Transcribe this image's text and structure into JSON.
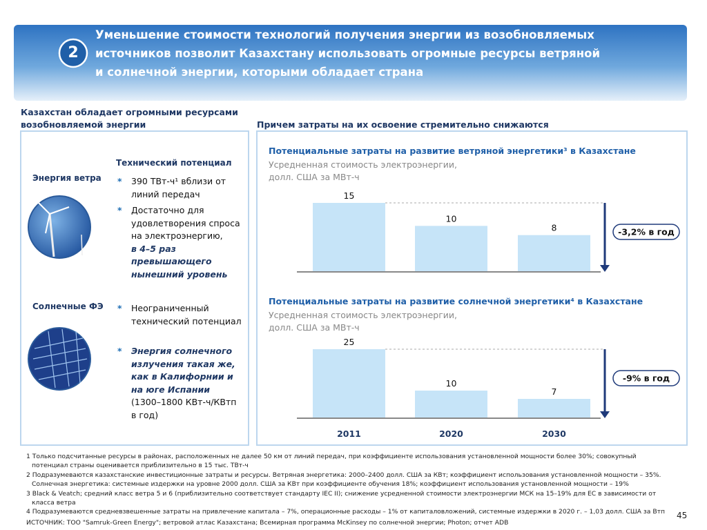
{
  "header": {
    "number": "2",
    "title_lines": [
      "Уменьшение стоимости технологий получения энергии из возобновляемых",
      "источников позволит Казахстану использовать огромные ресурсы ветряной",
      "и солнечной энергии, которыми обладает страна"
    ]
  },
  "left": {
    "heading": "Казахстан обладает огромными ресурсами возобновляемой энергии",
    "column_heading": "Технический потенциал",
    "sections": [
      {
        "label": "Энергия ветра",
        "bullets": [
          {
            "parts": [
              {
                "text": "390 ТВт-ч¹ вблизи от линий передач",
                "emphasis": false
              }
            ]
          },
          {
            "parts": [
              {
                "text": "Достаточно для удовлетворения спроса на электроэнергию,",
                "emphasis": false
              },
              {
                "text": "в 4–5 раз превышающего нынешний уровень",
                "emphasis": true
              }
            ]
          }
        ]
      },
      {
        "label": "Солнечные ФЭ",
        "bullets": [
          {
            "parts": [
              {
                "text": "Неограниченный технический потенциал",
                "emphasis": false
              }
            ]
          },
          {
            "parts": [
              {
                "text": "Энергия солнечного излучения такая же, как в Калифорнии и на юге Испании",
                "emphasis": true
              },
              {
                "text": "(1300–1800 КВт-ч/КВтп в год)",
                "emphasis": false
              }
            ]
          }
        ]
      }
    ]
  },
  "right_heading": "Причем затраты на их освоение стремительно снижаются",
  "chart_data": [
    {
      "type": "bar",
      "title": "Потенциальные затраты на развитие ветряной энергетики³ в Казахстане",
      "subtitle": "Усредненная стоимость электроэнергии, долл. США за МВт-ч",
      "values": [
        15,
        10,
        8
      ],
      "color": "#c6e4f8",
      "annotation": "-3,2% в год"
    },
    {
      "type": "bar",
      "title": "Потенциальные затраты на развитие солнечной энергетики⁴ в Казахстане",
      "subtitle": "Усредненная стоимость электроэнергии, долл. США за МВт-ч",
      "categories": [
        "2011",
        "2020",
        "2030"
      ],
      "values": [
        25,
        10,
        7
      ],
      "color": "#c6e4f8",
      "annotation": "-9% в год"
    }
  ],
  "footnotes": [
    "1 Только подсчитанные ресурсы в районах, расположенных не далее 50 км от линий передач, при коэффициенте использования установленной мощности более 30%; совокупный потенциал страны оценивается приблизительно в 15 тыс. ТВт-ч",
    "2 Подразумеваются казахстанские инвестиционные затраты и ресурсы. Ветряная энергетика: 2000–2400 долл. США за КВт; коэффициент использования установленной мощности – 35%. Солнечная энергетика: системные издержки на уровне 2000 долл. США за КВт при коэффициенте обучения 18%; коэффициент использования установленной мощности – 19%",
    "3 Black & Veatch; средний класс ветра 5 и 6 (приблизительно соответствует стандарту IEC II); снижение усредненной стоимости электроэнергии МСК на 15–19% для ЕС в зависимости от класса ветра",
    "4 Подразумеваются средневзвешенные затраты на привлечение капитала – 7%, операционные расходы – 1% от капиталовложений, системные издержки в 2020 г. – 1,03 долл. США за Втп"
  ],
  "source": "ИСТОЧНИК: ТОО \"Samruk-Green Energy\"; ветровой атлас Казахстана; Всемирная программа McKinsey по солнечной энергии; Photon; отчет ADB",
  "page_number": "45"
}
